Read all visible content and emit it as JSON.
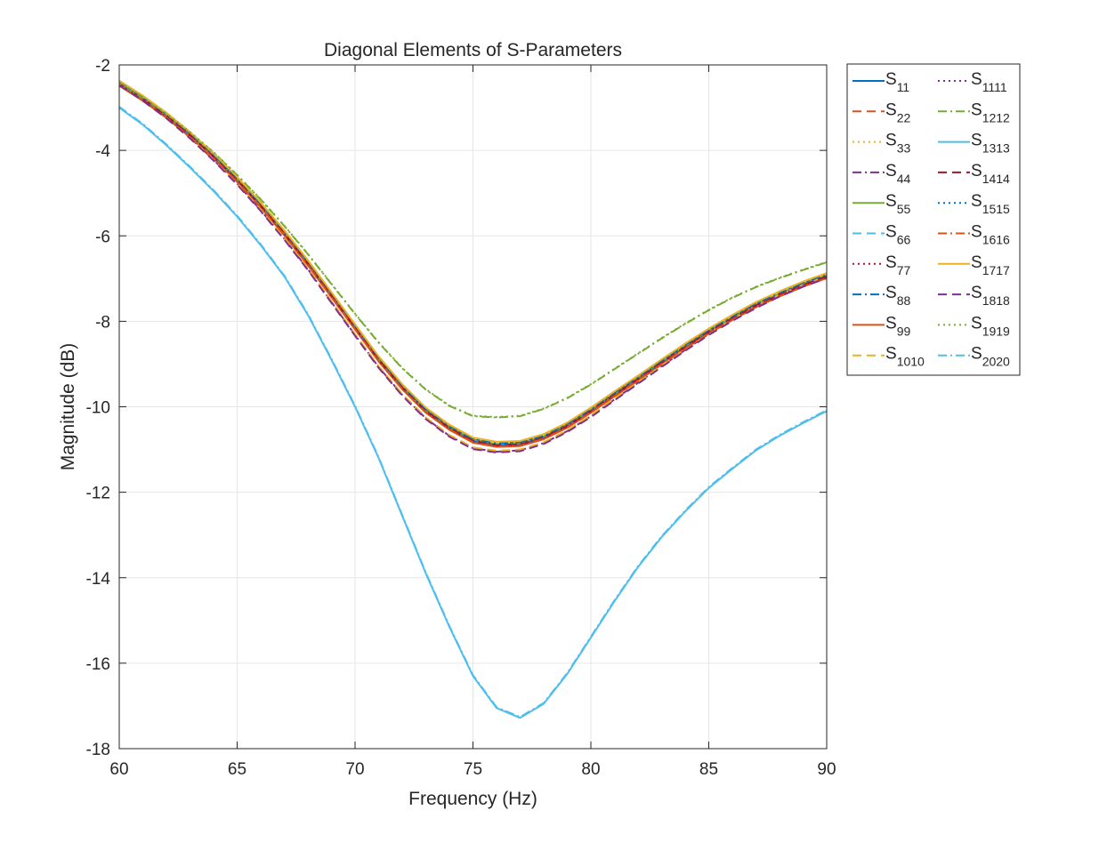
{
  "chart_data": {
    "type": "line",
    "title": "Diagonal Elements of S-Parameters",
    "xlabel": "Frequency (Hz)",
    "ylabel": "Magnitude (dB)",
    "xlim": [
      60,
      90
    ],
    "ylim": [
      -18,
      -2
    ],
    "xticks": [
      60,
      65,
      70,
      75,
      80,
      85,
      90
    ],
    "yticks": [
      -18,
      -16,
      -14,
      -12,
      -10,
      -8,
      -6,
      -4,
      -2
    ],
    "grid": true,
    "legend_position": "outside-top-right",
    "x": [
      60,
      61,
      62,
      63,
      64,
      65,
      66,
      67,
      68,
      69,
      70,
      71,
      72,
      73,
      74,
      75,
      76,
      77,
      78,
      79,
      80,
      81,
      82,
      83,
      84,
      85,
      86,
      87,
      88,
      89,
      90
    ],
    "profiles": {
      "A": [
        -2.45,
        -2.8,
        -3.2,
        -3.65,
        -4.15,
        -4.7,
        -5.3,
        -5.95,
        -6.65,
        -7.4,
        -8.15,
        -8.9,
        -9.55,
        -10.1,
        -10.5,
        -10.8,
        -10.9,
        -10.88,
        -10.72,
        -10.45,
        -10.1,
        -9.72,
        -9.35,
        -8.97,
        -8.6,
        -8.25,
        -7.93,
        -7.63,
        -7.38,
        -7.15,
        -6.95
      ],
      "B": [
        -2.45,
        -2.82,
        -3.23,
        -3.7,
        -4.22,
        -4.78,
        -5.4,
        -6.07,
        -6.78,
        -7.55,
        -8.32,
        -9.07,
        -9.72,
        -10.27,
        -10.68,
        -10.97,
        -11.05,
        -11.02,
        -10.85,
        -10.57,
        -10.22,
        -9.83,
        -9.44,
        -9.05,
        -8.67,
        -8.3,
        -7.97,
        -7.67,
        -7.4,
        -7.17,
        -6.97
      ],
      "C": [
        -2.45,
        -2.78,
        -3.15,
        -3.58,
        -4.05,
        -4.58,
        -5.15,
        -5.77,
        -6.43,
        -7.13,
        -7.83,
        -8.5,
        -9.1,
        -9.6,
        -9.98,
        -10.22,
        -10.25,
        -10.22,
        -10.05,
        -9.8,
        -9.48,
        -9.12,
        -8.76,
        -8.4,
        -8.06,
        -7.74,
        -7.45,
        -7.2,
        -6.99,
        -6.8,
        -6.62
      ],
      "D": [
        -3.0,
        -3.4,
        -3.88,
        -4.4,
        -4.95,
        -5.55,
        -6.22,
        -6.95,
        -7.85,
        -8.9,
        -10.0,
        -11.2,
        -12.55,
        -13.9,
        -15.15,
        -16.3,
        -17.05,
        -17.28,
        -16.95,
        -16.25,
        -15.4,
        -14.55,
        -13.75,
        -13.05,
        -12.45,
        -11.9,
        -11.45,
        -11.02,
        -10.68,
        -10.38,
        -10.1
      ]
    },
    "series": [
      {
        "name": "S",
        "sub": "11",
        "color": "#0072BD",
        "style": "solid",
        "profile": "A",
        "offset": 0.0
      },
      {
        "name": "S",
        "sub": "22",
        "color": "#D95319",
        "style": "dashed",
        "profile": "A",
        "offset": 0.02
      },
      {
        "name": "S",
        "sub": "33",
        "color": "#EDB120",
        "style": "dotted",
        "profile": "A",
        "offset": 0.04
      },
      {
        "name": "S",
        "sub": "44",
        "color": "#7E2F8E",
        "style": "dashdot",
        "profile": "B",
        "offset": 0.0
      },
      {
        "name": "S",
        "sub": "55",
        "color": "#77AC30",
        "style": "solid",
        "profile": "A",
        "offset": 0.03
      },
      {
        "name": "S",
        "sub": "66",
        "color": "#4DBEEE",
        "style": "dashed",
        "profile": "A",
        "offset": -0.02
      },
      {
        "name": "S",
        "sub": "77",
        "color": "#A2142F",
        "style": "dotted",
        "profile": "A",
        "offset": 0.01
      },
      {
        "name": "S",
        "sub": "88",
        "color": "#0072BD",
        "style": "dashdot",
        "profile": "A",
        "offset": 0.05
      },
      {
        "name": "S",
        "sub": "99",
        "color": "#D95319",
        "style": "solid",
        "profile": "A",
        "offset": -0.04
      },
      {
        "name": "S",
        "sub": "1010",
        "color": "#EDB120",
        "style": "dashed",
        "profile": "B",
        "offset": 0.02
      },
      {
        "name": "S",
        "sub": "1111",
        "color": "#7E2F8E",
        "style": "dotted",
        "profile": "A",
        "offset": -0.01
      },
      {
        "name": "S",
        "sub": "1212",
        "color": "#77AC30",
        "style": "dashdot",
        "profile": "C",
        "offset": 0.0
      },
      {
        "name": "S",
        "sub": "1313",
        "color": "#4DBEEE",
        "style": "solid",
        "profile": "D",
        "offset": 0.0
      },
      {
        "name": "S",
        "sub": "1414",
        "color": "#A2142F",
        "style": "dashed",
        "profile": "A",
        "offset": 0.0
      },
      {
        "name": "S",
        "sub": "1515",
        "color": "#0072BD",
        "style": "dotted",
        "profile": "A",
        "offset": 0.06
      },
      {
        "name": "S",
        "sub": "1616",
        "color": "#D95319",
        "style": "dashdot",
        "profile": "A",
        "offset": -0.03
      },
      {
        "name": "S",
        "sub": "1717",
        "color": "#EDB120",
        "style": "solid",
        "profile": "A",
        "offset": 0.08
      },
      {
        "name": "S",
        "sub": "1818",
        "color": "#7E2F8E",
        "style": "dashed",
        "profile": "B",
        "offset": -0.02
      },
      {
        "name": "S",
        "sub": "1919",
        "color": "#77AC30",
        "style": "dotted",
        "profile": "C",
        "offset": 0.01
      },
      {
        "name": "S",
        "sub": "2020",
        "color": "#4DBEEE",
        "style": "dashdot",
        "profile": "D",
        "offset": 0.02
      }
    ]
  }
}
